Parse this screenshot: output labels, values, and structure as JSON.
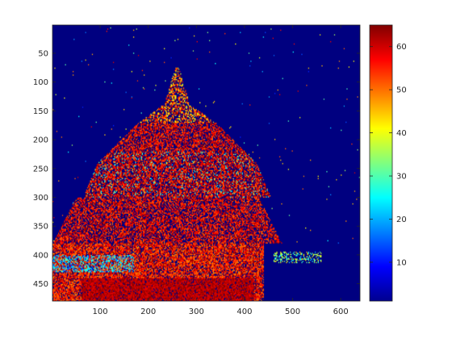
{
  "chart_data": {
    "type": "heatmap",
    "title": "",
    "xlabel": "",
    "ylabel": "",
    "colormap": "jet",
    "background_value": 1,
    "xlim": [
      1,
      640
    ],
    "ylim": [
      1,
      480
    ],
    "y_direction": "reversed",
    "clim": [
      1,
      65
    ],
    "x_ticks": [
      100,
      200,
      300,
      400,
      500,
      600
    ],
    "y_ticks": [
      50,
      100,
      150,
      200,
      250,
      300,
      350,
      400,
      450
    ],
    "colorbar_ticks": [
      10,
      20,
      30,
      40,
      50,
      60
    ],
    "regions": [
      {
        "name": "spire",
        "x": [
          295,
          320
        ],
        "y": [
          75,
          140
        ],
        "value": 50
      },
      {
        "name": "upper-abbey",
        "x": [
          250,
          300
        ],
        "y": [
          120,
          170
        ],
        "value": 45
      },
      {
        "name": "abbey-body",
        "x": [
          160,
          340
        ],
        "y": [
          150,
          240
        ],
        "value": 58
      },
      {
        "name": "ramparts",
        "x": [
          80,
          380
        ],
        "y": [
          230,
          300
        ],
        "value": 60
      },
      {
        "name": "town",
        "x": [
          70,
          420
        ],
        "y": [
          300,
          390
        ],
        "value": 58
      },
      {
        "name": "shore",
        "x": [
          0,
          440
        ],
        "y": [
          380,
          480
        ],
        "value": 55
      },
      {
        "name": "reflection-cyan",
        "x": [
          20,
          160
        ],
        "y": [
          400,
          430
        ],
        "value": 22
      }
    ],
    "grid": false,
    "legend": "colorbar-right"
  }
}
